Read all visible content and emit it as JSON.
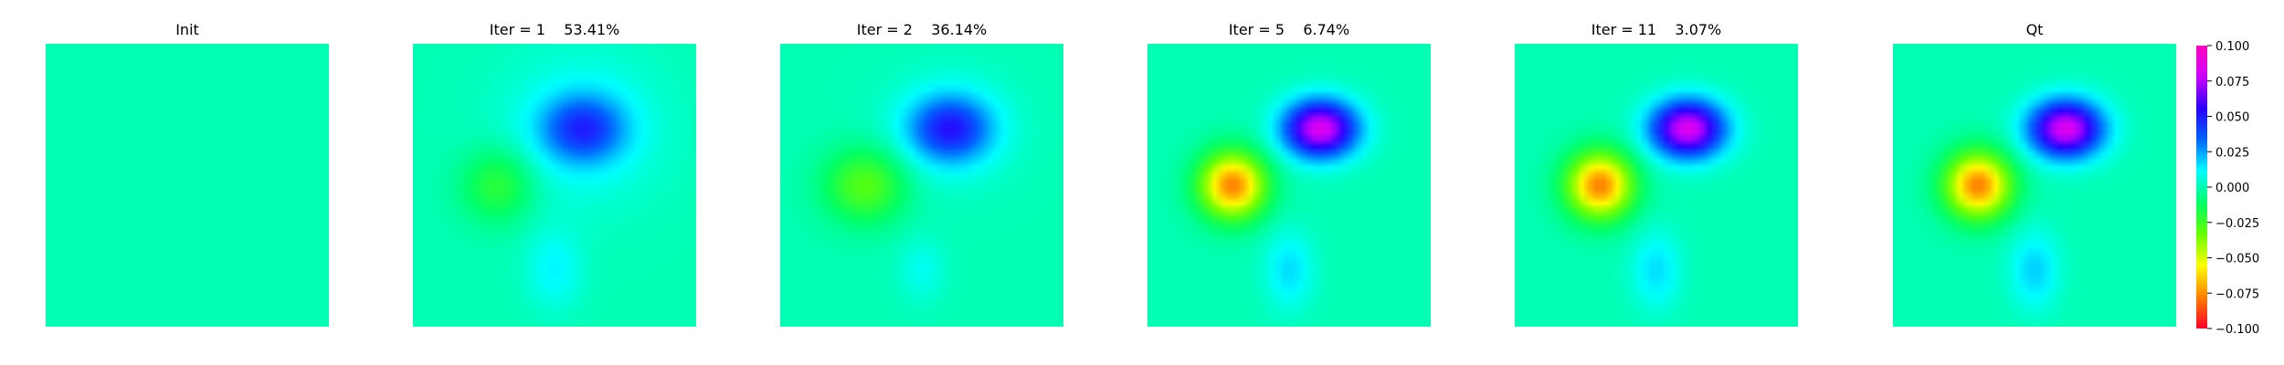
{
  "colormap": {
    "name": "gist_rainbow_r",
    "stops": [
      "#ff0029",
      "#ff7f00",
      "#ffff00",
      "#66ff00",
      "#00ff66",
      "#00ffff",
      "#0066ff",
      "#2900ff",
      "#cc00ff",
      "#ff00bf"
    ]
  },
  "chart_data": [
    {
      "type": "heatmap",
      "title": "Init",
      "blobs": []
    },
    {
      "type": "heatmap",
      "title": "Iter = 1    53.41%",
      "blobs": [
        {
          "cx": 0.6,
          "cy": 0.3,
          "sx": 0.1,
          "sy": 0.08,
          "amp": 0.038
        },
        {
          "cx": 0.6,
          "cy": 0.3,
          "sx": 0.2,
          "sy": 0.19,
          "amp": 0.012
        },
        {
          "cx": 0.3,
          "cy": 0.5,
          "sx": 0.09,
          "sy": 0.09,
          "amp": -0.022
        },
        {
          "cx": 0.5,
          "cy": 0.8,
          "sx": 0.07,
          "sy": 0.1,
          "amp": 0.012
        }
      ]
    },
    {
      "type": "heatmap",
      "title": "Iter = 2    36.14%",
      "blobs": [
        {
          "cx": 0.6,
          "cy": 0.3,
          "sx": 0.1,
          "sy": 0.08,
          "amp": 0.045
        },
        {
          "cx": 0.6,
          "cy": 0.3,
          "sx": 0.17,
          "sy": 0.15,
          "amp": 0.008
        },
        {
          "cx": 0.3,
          "cy": 0.5,
          "sx": 0.1,
          "sy": 0.09,
          "amp": -0.03
        },
        {
          "cx": 0.5,
          "cy": 0.8,
          "sx": 0.06,
          "sy": 0.08,
          "amp": 0.009
        }
      ]
    },
    {
      "type": "heatmap",
      "title": "Iter = 5    6.74%",
      "blobs": [
        {
          "cx": 0.61,
          "cy": 0.3,
          "sx": 0.09,
          "sy": 0.07,
          "amp": 0.085
        },
        {
          "cx": 0.3,
          "cy": 0.5,
          "sx": 0.08,
          "sy": 0.08,
          "amp": -0.078
        },
        {
          "cx": 0.5,
          "cy": 0.8,
          "sx": 0.06,
          "sy": 0.095,
          "amp": 0.016
        }
      ]
    },
    {
      "type": "heatmap",
      "title": "Iter = 11    3.07%",
      "blobs": [
        {
          "cx": 0.61,
          "cy": 0.3,
          "sx": 0.09,
          "sy": 0.07,
          "amp": 0.085
        },
        {
          "cx": 0.3,
          "cy": 0.5,
          "sx": 0.08,
          "sy": 0.08,
          "amp": -0.078
        },
        {
          "cx": 0.5,
          "cy": 0.8,
          "sx": 0.06,
          "sy": 0.095,
          "amp": 0.016
        }
      ]
    },
    {
      "type": "heatmap",
      "title": "Qt",
      "blobs": [
        {
          "cx": 0.61,
          "cy": 0.3,
          "sx": 0.09,
          "sy": 0.07,
          "amp": 0.085
        },
        {
          "cx": 0.3,
          "cy": 0.5,
          "sx": 0.08,
          "sy": 0.08,
          "amp": -0.078
        },
        {
          "cx": 0.5,
          "cy": 0.8,
          "sx": 0.06,
          "sy": 0.095,
          "amp": 0.018
        }
      ]
    }
  ],
  "colorbar": {
    "range": [
      -0.1,
      0.1
    ],
    "ticks": [
      0.1,
      0.075,
      0.05,
      0.025,
      0.0,
      -0.025,
      -0.05,
      -0.075,
      -0.1
    ],
    "tick_labels": [
      "0.100",
      "0.075",
      "0.050",
      "0.025",
      "0.000",
      "−0.025",
      "−0.050",
      "−0.075",
      "−0.100"
    ]
  }
}
